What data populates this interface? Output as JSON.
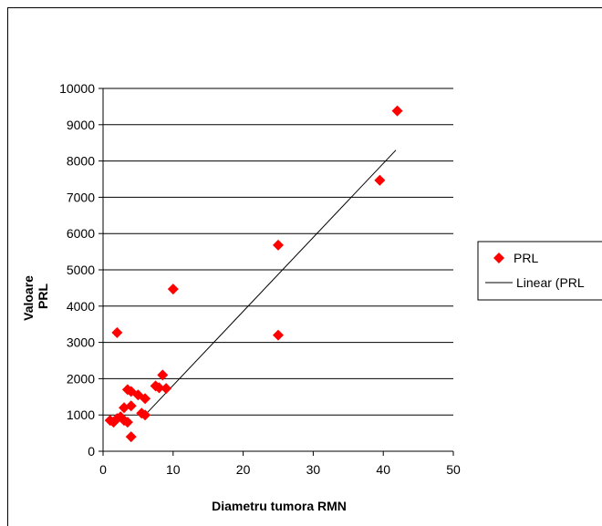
{
  "chart_data": {
    "type": "scatter",
    "title": "",
    "xlabel": "Diametru tumora RMN",
    "ylabel": [
      "Valoare",
      "PRL"
    ],
    "xlim": [
      0,
      50
    ],
    "ylim": [
      0,
      10000
    ],
    "x_ticks": [
      0,
      10,
      20,
      30,
      40,
      50
    ],
    "y_ticks": [
      0,
      1000,
      2000,
      3000,
      4000,
      5000,
      6000,
      7000,
      8000,
      9000,
      10000
    ],
    "grid": "horizontal",
    "legend_position": "right",
    "series": [
      {
        "name": "PRL",
        "color": "#ff0000",
        "marker": "diamond",
        "points": [
          [
            1.0,
            850
          ],
          [
            1.5,
            800
          ],
          [
            2.0,
            3270
          ],
          [
            2.0,
            900
          ],
          [
            2.5,
            950
          ],
          [
            3.0,
            1200
          ],
          [
            3.0,
            850
          ],
          [
            3.5,
            1700
          ],
          [
            3.5,
            800
          ],
          [
            4.0,
            1250
          ],
          [
            4.0,
            1650
          ],
          [
            4.0,
            400
          ],
          [
            5.0,
            1550
          ],
          [
            5.5,
            1050
          ],
          [
            6.0,
            1450
          ],
          [
            6.0,
            1000
          ],
          [
            7.5,
            1800
          ],
          [
            8.0,
            1750
          ],
          [
            8.5,
            2100
          ],
          [
            9.0,
            1730
          ],
          [
            10.0,
            4470
          ],
          [
            25.0,
            5680
          ],
          [
            25.0,
            3200
          ],
          [
            39.5,
            7470
          ],
          [
            42.0,
            9380
          ]
        ]
      },
      {
        "name": "Linear (PRL",
        "color": "#000000",
        "type": "trendline",
        "x": [
          6.0,
          41.8
        ],
        "y": [
          1000,
          8300
        ]
      }
    ]
  }
}
